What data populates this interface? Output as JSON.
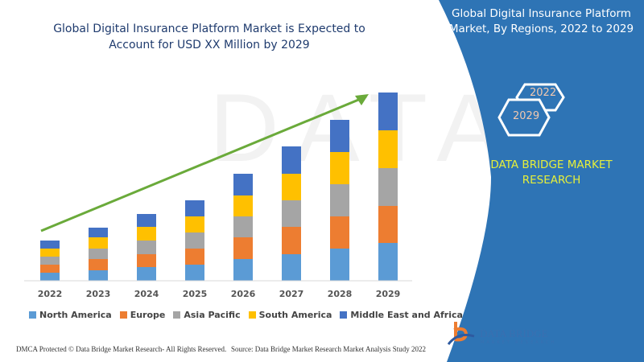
{
  "chart_data": {
    "type": "bar",
    "stacked": true,
    "title": "Global Digital Insurance Platform Market is Expected to Account for USD XX Million by 2029",
    "categories": [
      "2022",
      "2023",
      "2024",
      "2025",
      "2026",
      "2027",
      "2028",
      "2029"
    ],
    "series": [
      {
        "name": "North America",
        "color": "#5b9bd5",
        "values": [
          10,
          13,
          17,
          20,
          27,
          33,
          40,
          47
        ]
      },
      {
        "name": "Europe",
        "color": "#ed7d31",
        "values": [
          10,
          14,
          16,
          20,
          27,
          34,
          40,
          46
        ]
      },
      {
        "name": "Asia Pacific",
        "color": "#a5a5a5",
        "values": [
          10,
          13,
          17,
          20,
          26,
          33,
          40,
          47
        ]
      },
      {
        "name": "South America",
        "color": "#ffc000",
        "values": [
          10,
          14,
          17,
          20,
          26,
          33,
          40,
          47
        ]
      },
      {
        "name": "Middle East and Africa",
        "color": "#4472c4",
        "values": [
          10,
          12,
          16,
          20,
          27,
          34,
          40,
          47
        ]
      }
    ],
    "xlabel": "",
    "ylabel": "",
    "ylim": [
      0,
      240
    ],
    "grid": false,
    "legend": "bottom",
    "trend_arrow_color": "#6aaa3a"
  },
  "side": {
    "title": "Global Digital Insurance Platform Market, By Regions, 2022 to 2029",
    "hex_start": "2022",
    "hex_end": "2029",
    "brand": "DATA BRIDGE MARKET RESEARCH",
    "panel_color": "#2e74b5",
    "logo_text": "DATA BRIDGE",
    "logo_sub": "MARKET RESEARCH"
  },
  "footer": {
    "left": "DMCA Protected © Data Bridge Market Research- All Rights Reserved.",
    "right": "Source: Data Bridge Market Research Market Analysis Study 2022"
  }
}
